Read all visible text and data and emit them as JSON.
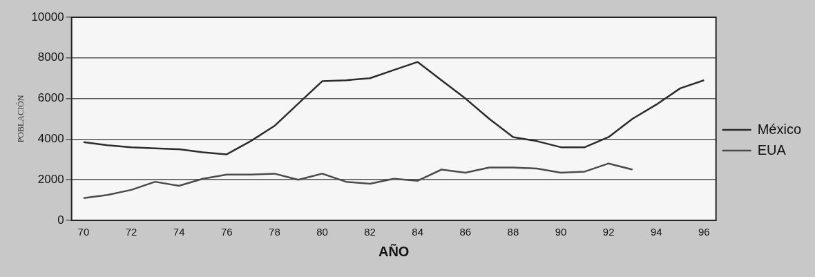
{
  "chart_data": {
    "type": "line",
    "xlabel": "AÑO",
    "ylabel": "POBLACIÓN",
    "categories": [
      "70",
      null,
      "72",
      null,
      "74",
      null,
      "76",
      null,
      "78",
      null,
      "80",
      null,
      "82",
      null,
      "84",
      null,
      "86",
      null,
      "88",
      null,
      "90",
      null,
      "92",
      null,
      "94",
      null,
      "96"
    ],
    "series": [
      {
        "name": "México",
        "color": "#2b2b2b",
        "values": [
          3850,
          3700,
          3600,
          3550,
          3500,
          3350,
          3250,
          3900,
          4650,
          5750,
          6850,
          6900,
          7000,
          7400,
          7800,
          6900,
          6000,
          5000,
          4100,
          3900,
          3600,
          3600,
          4100,
          5000,
          5700,
          6500,
          6900
        ]
      },
      {
        "name": "EUA",
        "color": "#4a4a4a",
        "values": [
          1100,
          1250,
          1500,
          1900,
          1700,
          2050,
          2250,
          2250,
          2300,
          2000,
          2300,
          1900,
          1800,
          2050,
          1950,
          2500,
          2350,
          2600,
          2600,
          2550,
          2350,
          2400,
          2800,
          2500,
          null,
          null,
          null
        ]
      }
    ],
    "ylim": [
      0,
      10000
    ],
    "yticks": [
      0,
      2000,
      4000,
      6000,
      8000,
      10000
    ],
    "grid": "y",
    "legend": "right",
    "marker": "none",
    "line_style": "solid"
  }
}
